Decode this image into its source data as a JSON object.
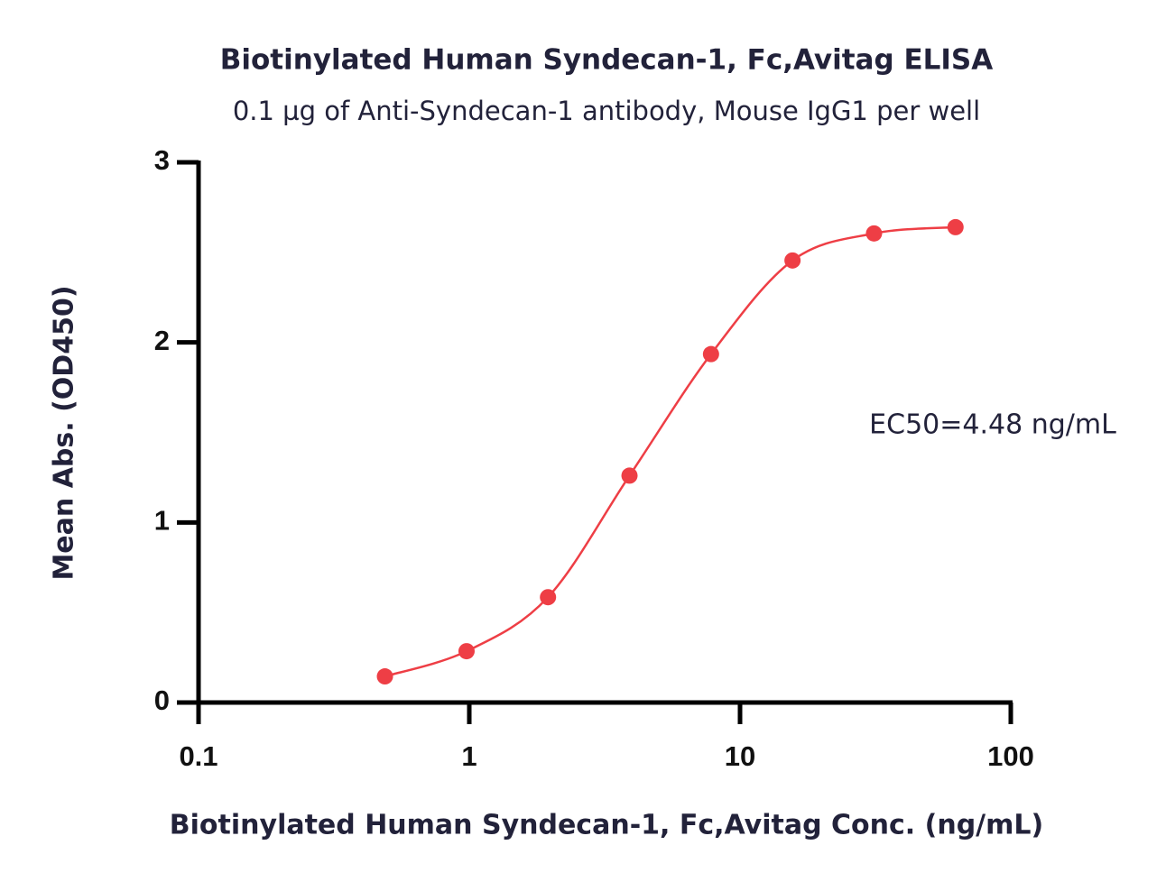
{
  "chart_data": {
    "type": "line",
    "title": "Biotinylated Human Syndecan-1, Fc,Avitag ELISA",
    "subtitle": "0.1 µg of Anti-Syndecan-1 antibody, Mouse IgG1 per well",
    "x_label": "Biotinylated Human Syndecan-1, Fc,Avitag Conc. (ng/mL)",
    "y_label": "Mean Abs. (OD450)",
    "annotation": "EC50=4.48 ng/mL",
    "xscale": "log",
    "x": [
      0.488,
      0.977,
      1.953,
      3.906,
      7.8125,
      15.625,
      31.25,
      62.5
    ],
    "series": [
      {
        "name": "Mean Abs.",
        "color": "#ee3e45",
        "values": [
          0.145,
          0.285,
          0.585,
          1.26,
          1.935,
          2.455,
          2.605,
          2.64
        ]
      }
    ],
    "xlim": [
      0.1,
      100
    ],
    "xticks": [
      0.1,
      1,
      10,
      100
    ],
    "ylim": [
      0,
      3
    ],
    "yticks": [
      0,
      1,
      2,
      3
    ]
  }
}
